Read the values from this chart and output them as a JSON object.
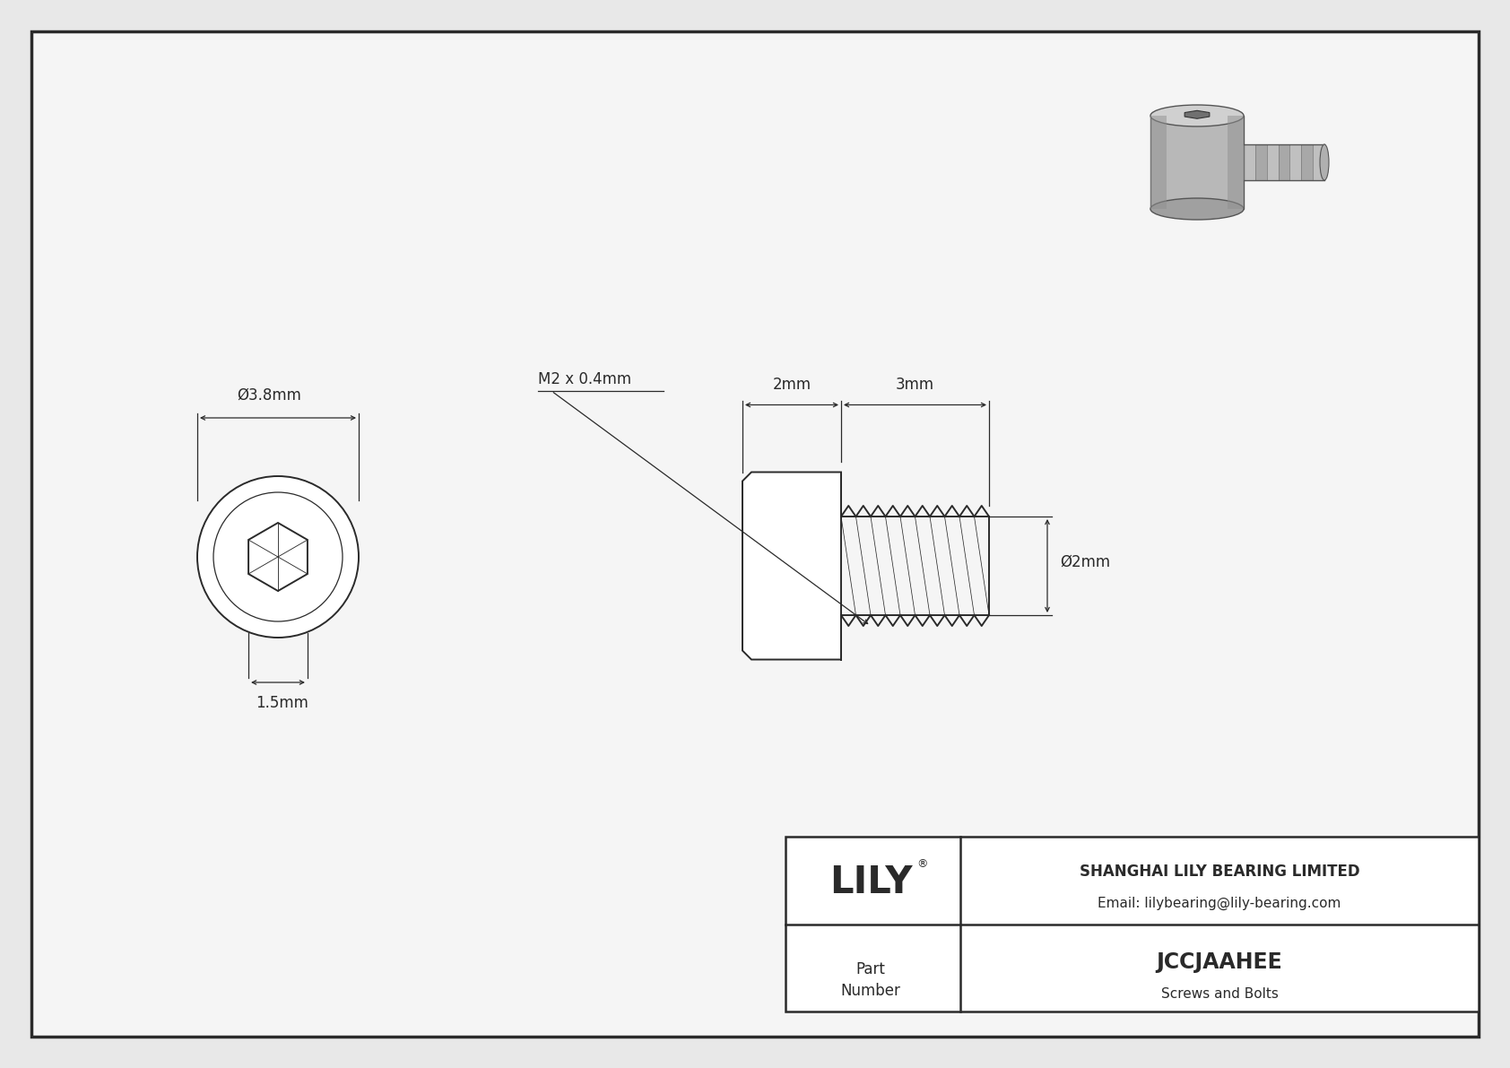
{
  "bg_color": "#e8e8e8",
  "drawing_bg": "#f5f5f5",
  "line_color": "#2a2a2a",
  "title_company": "SHANGHAI LILY BEARING LIMITED",
  "title_email": "Email: lilybearing@lily-bearing.com",
  "part_number": "JCCJAAHEE",
  "part_type": "Screws and Bolts",
  "part_label_line1": "Part",
  "part_label_line2": "Number",
  "dim_diameter": "Ø3.8mm",
  "dim_hex": "1.5mm",
  "dim_head_len": "2mm",
  "dim_thread_len": "3mm",
  "dim_thread_diam": "Ø2mm",
  "dim_thread_spec": "M2 x 0.4mm",
  "lily_logo": "LILY",
  "lily_reg": "®"
}
